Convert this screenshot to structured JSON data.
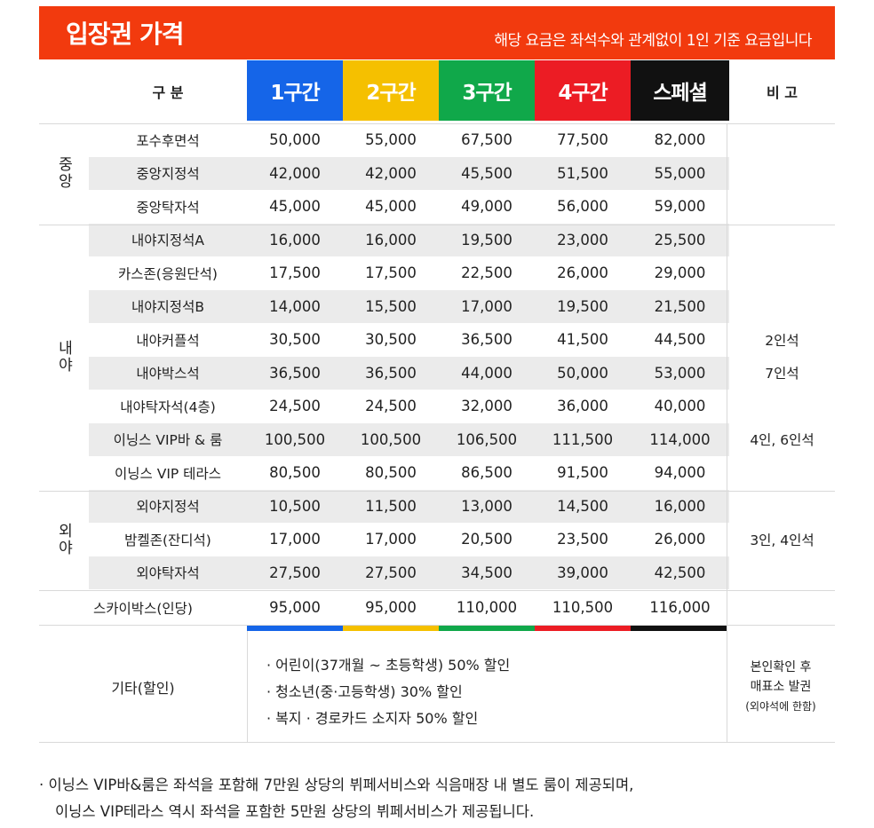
{
  "header": {
    "title": "입장권 가격",
    "subtitle": "해당 요금은 좌석수와 관계없이 1인 기준 요금입니다"
  },
  "columns": {
    "category": "구 분",
    "zones": [
      "1구간",
      "2구간",
      "3구간",
      "4구간",
      "스페셜"
    ],
    "note": "비 고"
  },
  "zone_colors": [
    "#1565e8",
    "#f5c000",
    "#10a84a",
    "#ec1c24",
    "#111111"
  ],
  "groups": [
    {
      "label": "중앙",
      "rows": [
        {
          "name": "포수후면석",
          "prices": [
            "50,000",
            "55,000",
            "67,500",
            "77,500",
            "82,000"
          ],
          "note": ""
        },
        {
          "name": "중앙지정석",
          "prices": [
            "42,000",
            "42,000",
            "45,500",
            "51,500",
            "55,000"
          ],
          "note": ""
        },
        {
          "name": "중앙탁자석",
          "prices": [
            "45,000",
            "45,000",
            "49,000",
            "56,000",
            "59,000"
          ],
          "note": ""
        }
      ]
    },
    {
      "label": "내야",
      "rows": [
        {
          "name": "내야지정석A",
          "prices": [
            "16,000",
            "16,000",
            "19,500",
            "23,000",
            "25,500"
          ],
          "note": ""
        },
        {
          "name": "카스존(응원단석)",
          "prices": [
            "17,500",
            "17,500",
            "22,500",
            "26,000",
            "29,000"
          ],
          "note": ""
        },
        {
          "name": "내야지정석B",
          "prices": [
            "14,000",
            "15,500",
            "17,000",
            "19,500",
            "21,500"
          ],
          "note": ""
        },
        {
          "name": "내야커플석",
          "prices": [
            "30,500",
            "30,500",
            "36,500",
            "41,500",
            "44,500"
          ],
          "note": "2인석"
        },
        {
          "name": "내야박스석",
          "prices": [
            "36,500",
            "36,500",
            "44,000",
            "50,000",
            "53,000"
          ],
          "note": "7인석"
        },
        {
          "name": "내야탁자석(4층)",
          "prices": [
            "24,500",
            "24,500",
            "32,000",
            "36,000",
            "40,000"
          ],
          "note": ""
        },
        {
          "name": "이닝스 VIP바 & 룸",
          "prices": [
            "100,500",
            "100,500",
            "106,500",
            "111,500",
            "114,000"
          ],
          "note": "4인, 6인석"
        },
        {
          "name": "이닝스 VIP 테라스",
          "prices": [
            "80,500",
            "80,500",
            "86,500",
            "91,500",
            "94,000"
          ],
          "note": ""
        }
      ]
    },
    {
      "label": "외야",
      "rows": [
        {
          "name": "외야지정석",
          "prices": [
            "10,500",
            "11,500",
            "13,000",
            "14,500",
            "16,000"
          ],
          "note": ""
        },
        {
          "name": "밤켈존(잔디석)",
          "prices": [
            "17,000",
            "17,000",
            "20,500",
            "23,500",
            "26,000"
          ],
          "note": "3인, 4인석"
        },
        {
          "name": "외야탁자석",
          "prices": [
            "27,500",
            "27,500",
            "34,500",
            "39,000",
            "42,500"
          ],
          "note": ""
        }
      ]
    }
  ],
  "skybox": {
    "name": "스카이박스(인당)",
    "prices": [
      "95,000",
      "95,000",
      "110,000",
      "110,500",
      "116,000"
    ],
    "note": ""
  },
  "etc": {
    "label": "기타(할인)",
    "items": [
      "어린이(37개월 ~ 초등학생) 50% 할인",
      "청소년(중·고등학생) 30% 할인",
      "복지 · 경로카드 소지자 50% 할인"
    ],
    "note_line1": "본인확인 후",
    "note_line2": "매표소 발권",
    "note_line3": "(외야석에 한함)"
  },
  "footnote": {
    "line1": "· 이닝스 VIP바&룸은 좌석을 포함해 7만원 상당의 뷔페서비스와 식음매장 내 별도 룸이 제공되며,",
    "line2": "이닝스 VIP테라스 역시 좌석을 포함한 5만원 상당의 뷔페서비스가 제공됩니다."
  }
}
